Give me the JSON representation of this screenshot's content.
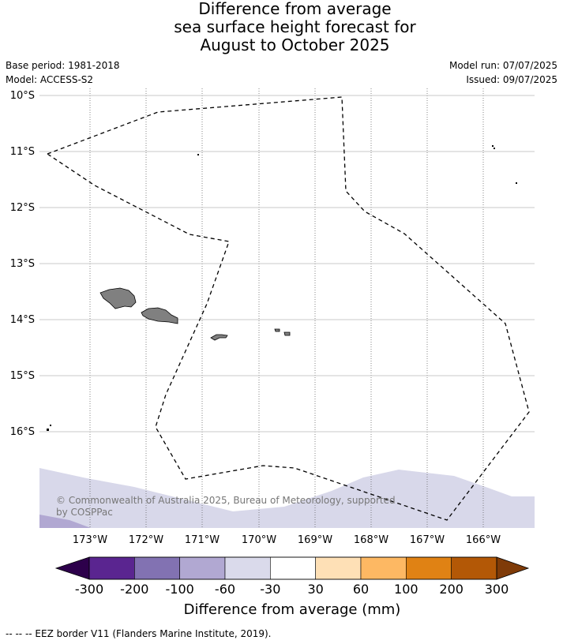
{
  "title": {
    "line1": "Difference from average",
    "line2": "sea surface height forecast for",
    "line3": "August to October 2025"
  },
  "meta": {
    "base_period": "Base period: 1981-2018",
    "model": "Model: ACCESS-S2",
    "model_run": "Model run: 07/07/2025",
    "issued": "Issued: 09/07/2025"
  },
  "map": {
    "lat_labels": [
      "10°S",
      "11°S",
      "12°S",
      "13°S",
      "14°S",
      "15°S",
      "16°S"
    ],
    "lon_labels": [
      "173°W",
      "172°W",
      "171°W",
      "170°W",
      "169°W",
      "168°W",
      "167°W",
      "166°W"
    ],
    "copyright_line1": "© Commonwealth of Australia 2025, Bureau of Meteorology, supported",
    "copyright_line2": "by COSPPac"
  },
  "colorbar": {
    "ticks": [
      "-300",
      "-200",
      "-100",
      "-60",
      "-30",
      "30",
      "60",
      "100",
      "200",
      "300"
    ],
    "colors": [
      "#5a2590",
      "#8272b2",
      "#b1a8d2",
      "#dadaeb",
      "#ffffff",
      "#fee0b6",
      "#fdb863",
      "#e08214",
      "#b35806"
    ],
    "under_color": "#2d004b",
    "over_color": "#7f3b08",
    "label": "Difference from average (mm)"
  },
  "footer": {
    "legend_text": "--  --  -- EEZ border V11 (Flanders Marine Institute, 2019)."
  }
}
